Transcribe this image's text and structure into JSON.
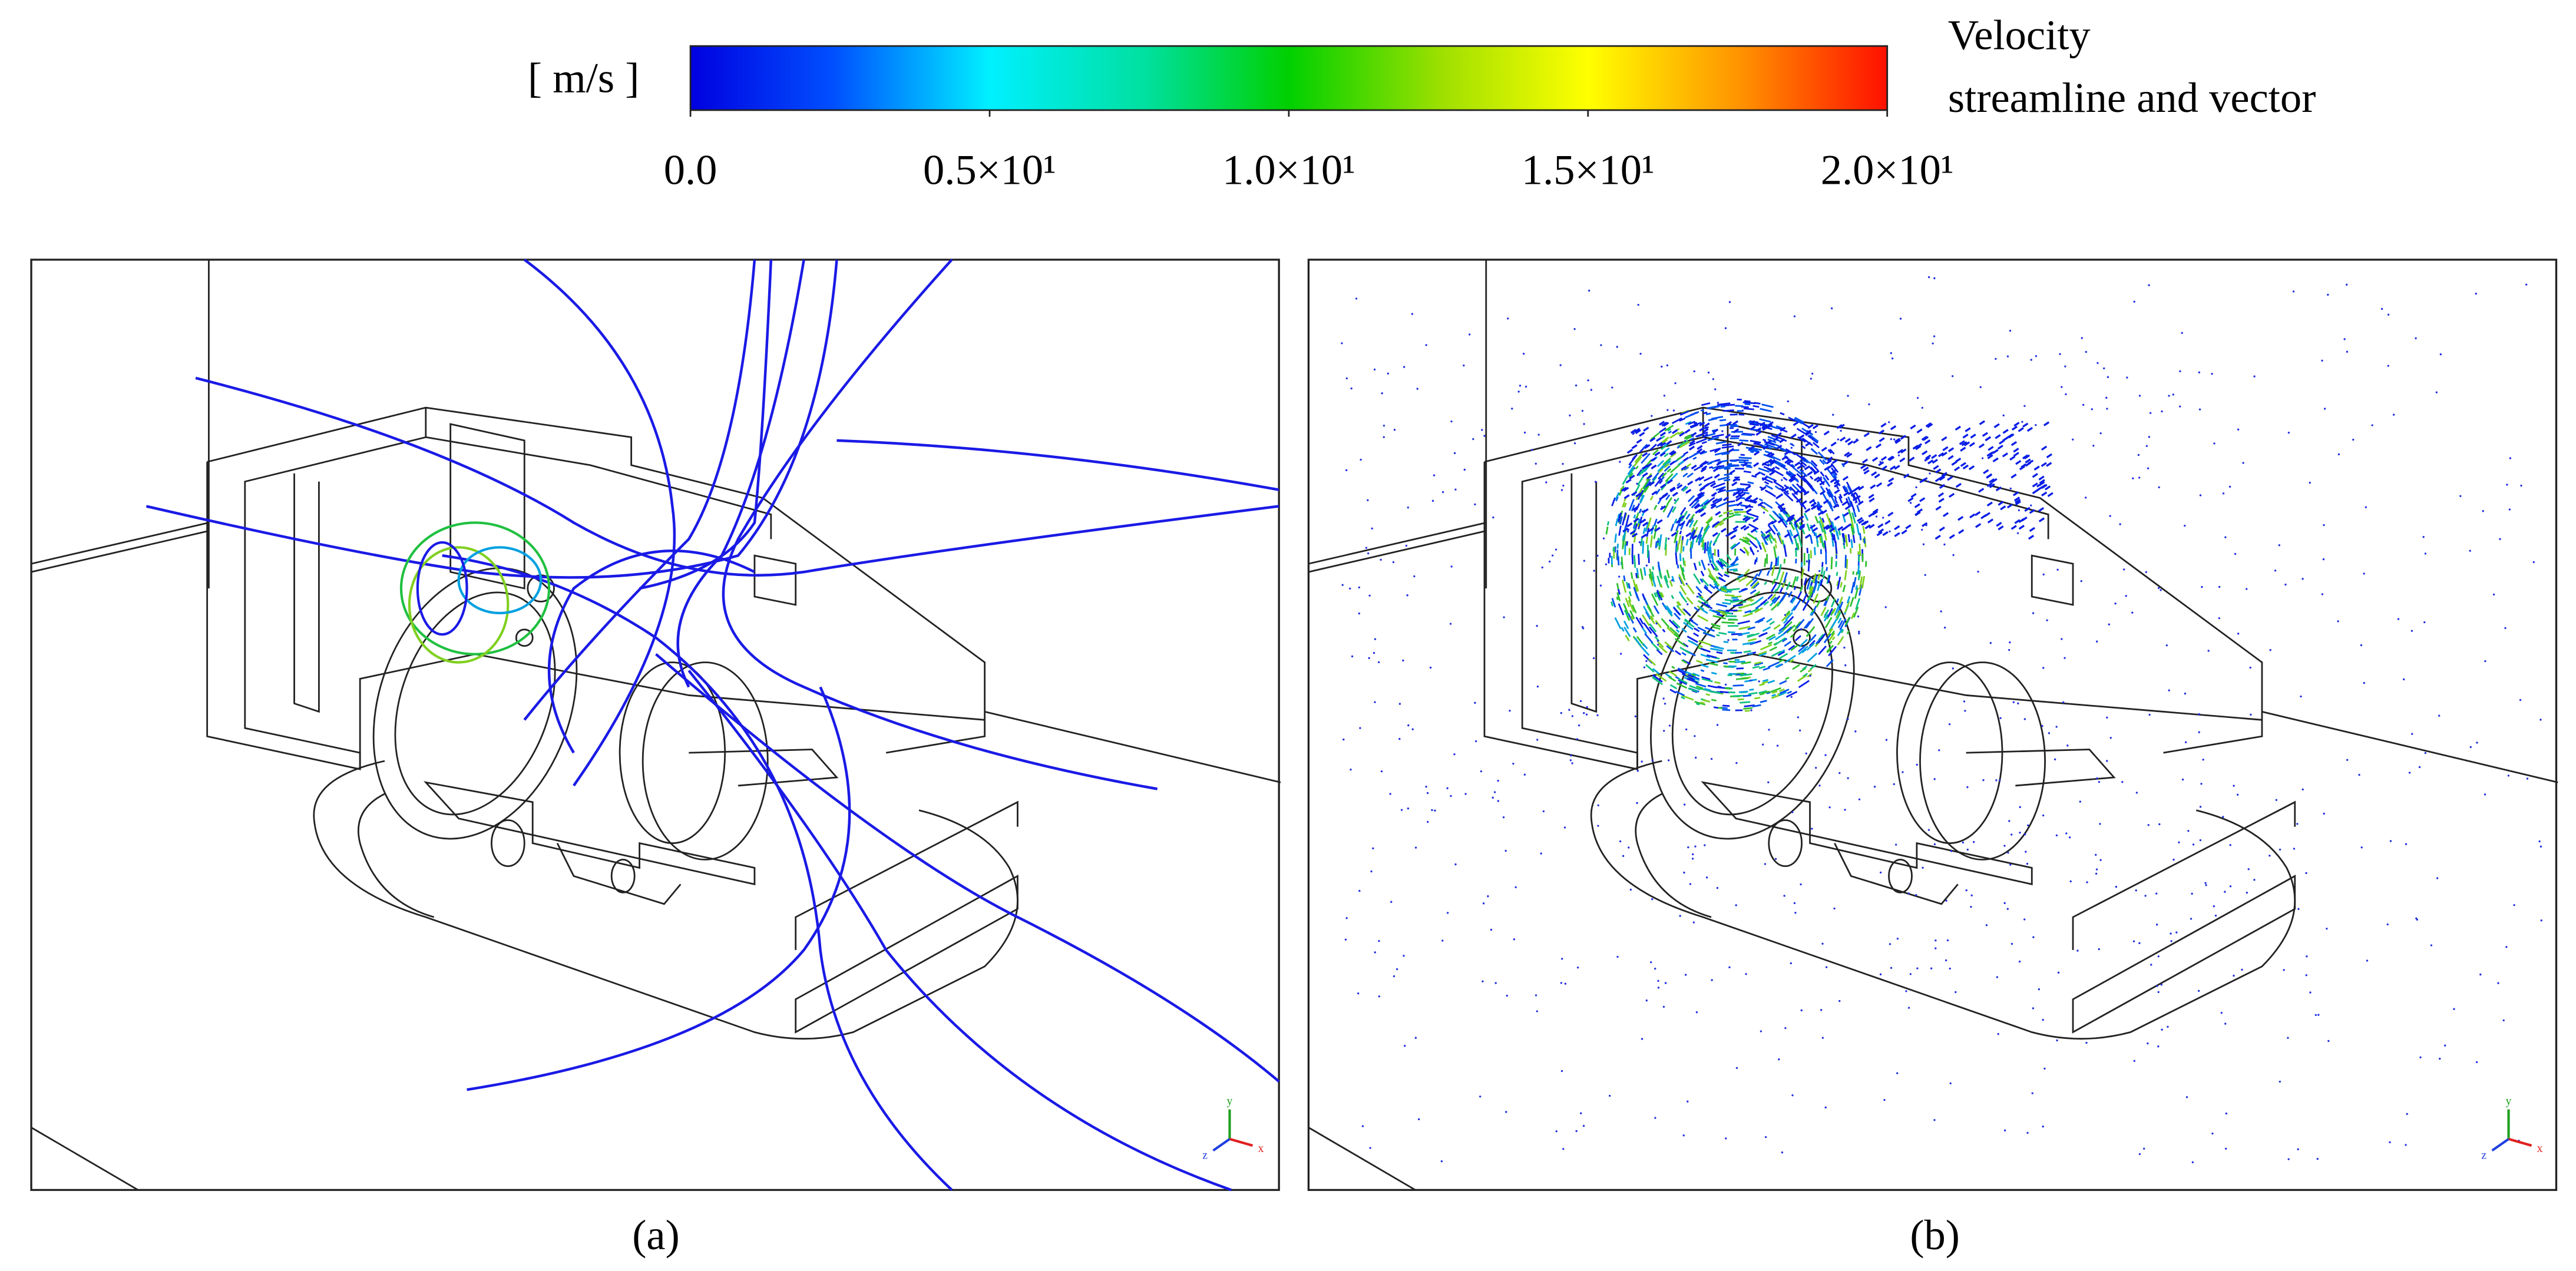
{
  "colorbar": {
    "unit": "[ m/s ]",
    "title": [
      "Velocity",
      "streamline and vector"
    ],
    "lim": [
      0,
      20
    ],
    "ticks": [
      {
        "value": 0,
        "label": "0.0"
      },
      {
        "value": 5,
        "label": "0.5×10¹"
      },
      {
        "value": 10,
        "label": "1.0×10¹"
      },
      {
        "value": 15,
        "label": "1.5×10¹"
      },
      {
        "value": 20,
        "label": "2.0×10¹"
      }
    ]
  },
  "panels": [
    {
      "label": "(a)",
      "axes": [
        "y",
        "z",
        "x"
      ]
    },
    {
      "label": "(b)",
      "axes": [
        "y",
        "z",
        "x"
      ]
    }
  ]
}
